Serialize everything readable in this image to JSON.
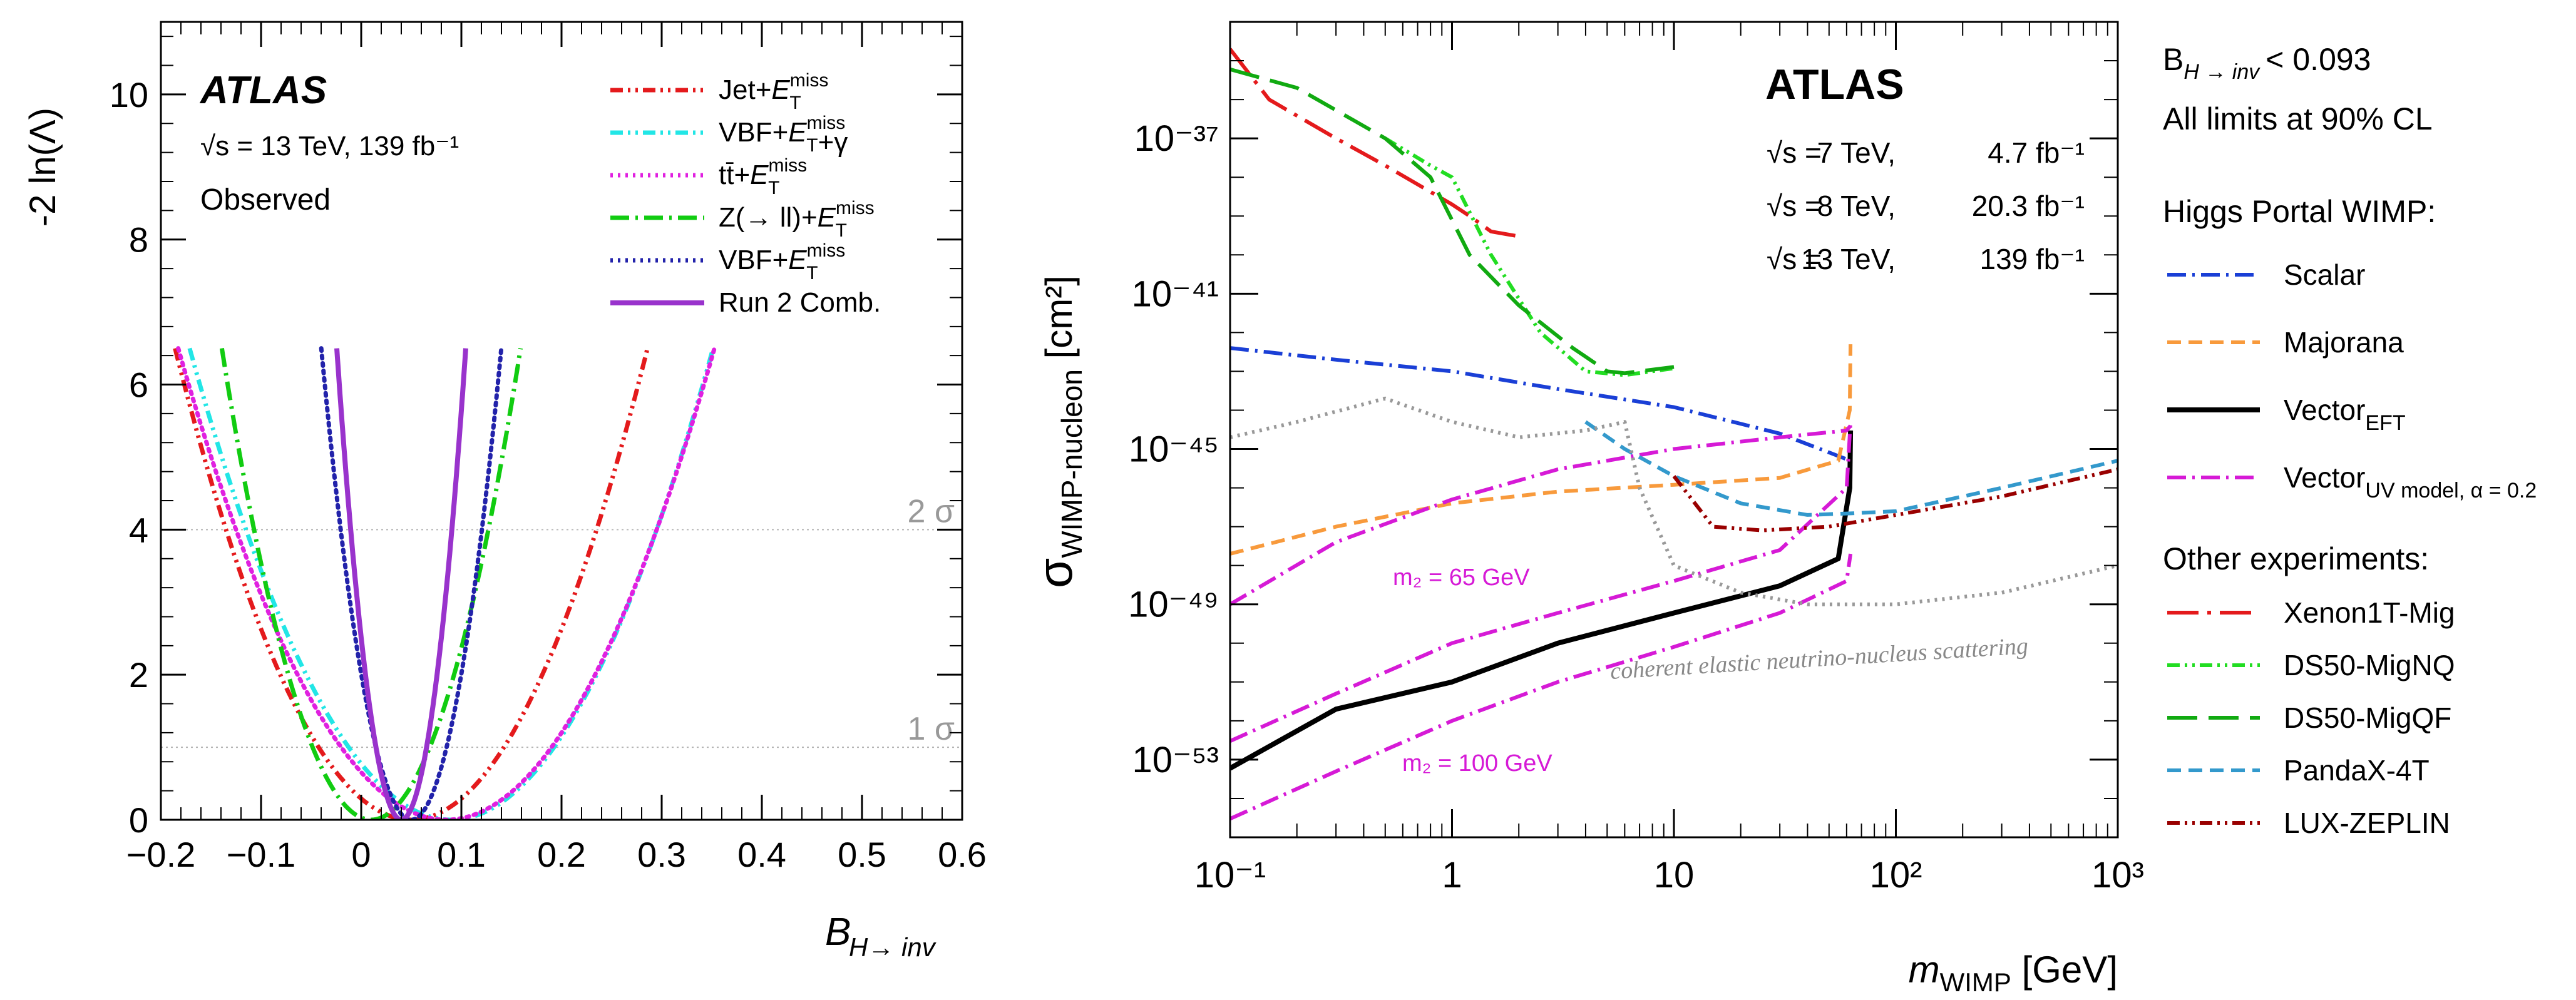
{
  "chart_data": [
    {
      "type": "line",
      "name": "likelihood-scan",
      "title": "",
      "experiment": "ATLAS",
      "energy": "√s = 13 TeV, 139 fb⁻¹",
      "status": "Observed",
      "xlabel": "B_{H→inv}",
      "ylabel": "-2 ln(Λ)",
      "xlim": [
        -0.2,
        0.6
      ],
      "ylim": [
        0,
        11
      ],
      "xticks": [
        -0.2,
        -0.1,
        0,
        0.1,
        0.2,
        0.3,
        0.4,
        0.5,
        0.6
      ],
      "xtick_labels": [
        "−0.2",
        "−0.1",
        "0",
        "0.1",
        "0.2",
        "0.3",
        "0.4",
        "0.5",
        "0.6"
      ],
      "yticks": [
        0,
        2,
        4,
        6,
        8,
        10
      ],
      "ytick_labels": [
        "0",
        "2",
        "4",
        "6",
        "8",
        "10"
      ],
      "legend_position": "top-right",
      "reference_lines": [
        {
          "y": 4,
          "label": "2 σ"
        },
        {
          "y": 1,
          "label": "1 σ"
        }
      ],
      "series": [
        {
          "name": "Jet+E_T^miss",
          "color": "#e41a1c",
          "style": "dash-dot-dot",
          "minimum": 0.05,
          "half_width": 0.185,
          "ymax": 6.5
        },
        {
          "name": "VBF+E_T^miss+γ",
          "color": "#22e6e6",
          "style": "dash-dot-dot",
          "minimum": 0.09,
          "half_width": 0.205,
          "ymax": 6.5
        },
        {
          "name": "tt̄+E_T^miss",
          "color": "#e020e0",
          "style": "dotted",
          "minimum": 0.085,
          "half_width": 0.21,
          "ymax": 6.5
        },
        {
          "name": "Z(→ ll)+E_T^miss",
          "color": "#11cc11",
          "style": "dash-dot",
          "minimum": 0.01,
          "half_width": 0.117,
          "ymax": 6.5
        },
        {
          "name": "VBF+E_T^miss",
          "color": "#2222aa",
          "style": "dotted",
          "minimum": 0.05,
          "half_width": 0.0705,
          "ymax": 6.5
        },
        {
          "name": "Run 2 Comb.",
          "color": "#9933cc",
          "style": "solid",
          "minimum": 0.04,
          "half_width": 0.0505,
          "ymax": 6.5
        }
      ]
    },
    {
      "type": "line",
      "name": "wimp-nucleon-limits",
      "title": "",
      "experiment": "ATLAS",
      "energy_lines": [
        {
          "sqrt_s": "√s =",
          "energy": "7 TeV,",
          "lumi": "4.7 fb⁻¹"
        },
        {
          "sqrt_s": "√s =",
          "energy": "8 TeV,",
          "lumi": "20.3 fb⁻¹"
        },
        {
          "sqrt_s": "√s =",
          "energy": "13 TeV,",
          "lumi": "139 fb⁻¹"
        }
      ],
      "xlabel": "m_WIMP [GeV]",
      "ylabel": "σ_WIMP-nucleon [cm²]",
      "xscale": "log",
      "yscale": "log",
      "xlim": [
        0.1,
        1000
      ],
      "ylim": [
        1e-55,
        1e-34
      ],
      "xticks": [
        0.1,
        1,
        10,
        100,
        1000
      ],
      "xtick_labels": [
        "10⁻¹",
        "1",
        "10",
        "10²",
        "10³"
      ],
      "yticks": [
        1e-53,
        1e-49,
        1e-45,
        1e-41,
        1e-37
      ],
      "ytick_labels": [
        "10⁻⁵³",
        "10⁻⁴⁹",
        "10⁻⁴⁵",
        "10⁻⁴¹",
        "10⁻³⁷"
      ],
      "annotations": [
        {
          "text": "m₂ = 65 GeV",
          "x": 2.0,
          "y": 3e-48
        },
        {
          "text": "m₂ = 100 GeV",
          "x": 2.5,
          "y": 1e-53
        },
        {
          "text": "coherent elastic neutrino-nucleus scattering",
          "x": 40,
          "y": 1e-50
        }
      ],
      "legend": {
        "header_b": "B",
        "header_b_sub": "H → inv",
        "header_b_value": "< 0.093",
        "cl": "All limits at 90% CL",
        "higgs_title": "Higgs Portal WIMP:",
        "other_title": "Other experiments:"
      },
      "series": [
        {
          "name": "Scalar",
          "sub": "",
          "group": "higgs",
          "color": "#1a3fd6",
          "style": "dash-dot",
          "x": [
            0.1,
            0.3,
            1,
            3,
            10,
            30,
            62.5
          ],
          "y": [
            4e-43,
            2e-43,
            1e-43,
            3.5e-44,
            1.2e-44,
            2.5e-45,
            5e-46
          ]
        },
        {
          "name": "Majorana",
          "sub": "",
          "group": "higgs",
          "color": "#f89a3c",
          "style": "dashed",
          "x": [
            0.1,
            0.3,
            1,
            3,
            10,
            30,
            55,
            62,
            62.5
          ],
          "y": [
            2e-48,
            1e-47,
            4e-47,
            8e-47,
            1.2e-46,
            1.8e-46,
            5e-46,
            1e-44,
            5e-43
          ]
        },
        {
          "name": "Vector",
          "sub": "EFT",
          "group": "higgs",
          "color": "#000000",
          "style": "solid",
          "x": [
            0.1,
            0.3,
            1,
            3,
            10,
            30,
            55,
            62,
            62.5
          ],
          "y": [
            6e-54,
            2e-52,
            1e-51,
            1e-50,
            6e-50,
            3e-49,
            1.5e-48,
            1e-46,
            3e-45
          ]
        },
        {
          "name": "Vector",
          "sub": "UV model, α = 0.2",
          "group": "higgs",
          "color": "#d61ad6",
          "style": "dash-dot",
          "x": [
            0.1,
            0.3,
            1,
            3,
            10,
            30,
            60,
            62.5
          ],
          "y": [
            3e-53,
            5e-52,
            1e-50,
            6e-50,
            4e-49,
            2.5e-48,
            1e-46,
            5e-45
          ]
        },
        {
          "name": "Vector",
          "sub": "UV model, α = 0.2",
          "group": "higgs-duplicate",
          "color": "#d61ad6",
          "style": "dash-dot",
          "x": [
            0.1,
            0.3,
            1,
            3,
            10,
            30,
            60,
            62.5
          ],
          "y": [
            3e-55,
            5e-54,
            1e-52,
            1e-51,
            8e-51,
            6e-50,
            4e-49,
            2e-48
          ]
        },
        {
          "name": "Vector",
          "sub": "UV model, α = 0.2",
          "group": "higgs-duplicate",
          "color": "#d61ad6",
          "style": "dash-dot",
          "x": [
            0.1,
            0.3,
            1,
            3,
            10,
            30,
            60,
            62.5
          ],
          "y": [
            1e-49,
            4e-48,
            5e-47,
            3e-46,
            1e-45,
            2e-45,
            3e-45,
            4e-45
          ]
        },
        {
          "name": "Xenon1T-Mig",
          "sub": "",
          "group": "other",
          "color": "#e41a1c",
          "style": "long-dash-dot",
          "x": [
            0.1,
            0.15,
            0.3,
            0.5,
            1,
            1.2,
            1.5,
            2
          ],
          "y": [
            2e-35,
            1e-36,
            1e-37,
            2e-38,
            2e-39,
            1e-39,
            4e-40,
            3e-40
          ]
        },
        {
          "name": "DS50-MigNQ",
          "sub": "",
          "group": "other",
          "color": "#22dd22",
          "style": "dash-dot-dot",
          "x": [
            0.5,
            0.8,
            1.0,
            1.5,
            2.5,
            4,
            6,
            10
          ],
          "y": [
            1e-37,
            2e-38,
            1e-38,
            1e-40,
            1e-42,
            1e-43,
            8e-44,
            1.2e-43
          ]
        },
        {
          "name": "DS50-MigQF",
          "sub": "",
          "group": "other",
          "color": "#11aa11",
          "style": "long-dash",
          "x": [
            0.1,
            0.2,
            0.5,
            0.8,
            1.2,
            2,
            3.5,
            5,
            6,
            10
          ],
          "y": [
            6e-36,
            2e-36,
            1e-37,
            1e-38,
            1e-40,
            5e-42,
            4e-43,
            1e-43,
            9e-44,
            1.3e-43
          ]
        },
        {
          "name": "PandaX-4T",
          "sub": "",
          "group": "other",
          "color": "#3399cc",
          "style": "dashed",
          "x": [
            4,
            6,
            10,
            20,
            40,
            62.5,
            100,
            300,
            1000
          ],
          "y": [
            5e-45,
            1e-45,
            2e-46,
            4e-47,
            2e-47,
            2.2e-47,
            2.5e-47,
            1e-46,
            5e-46
          ]
        },
        {
          "name": "LUX-ZEPLIN",
          "sub": "",
          "group": "other",
          "color": "#990000",
          "style": "dash-dot-dot",
          "x": [
            10,
            15,
            25,
            50,
            100,
            300,
            1000
          ],
          "y": [
            2e-46,
            1e-47,
            8e-48,
            1e-47,
            2e-47,
            6e-47,
            3e-46
          ]
        },
        {
          "name": "coherent elastic neutrino-nucleus scattering",
          "sub": "",
          "group": "floor",
          "color": "#999999",
          "style": "dotted",
          "x": [
            0.1,
            0.2,
            0.5,
            1,
            2,
            4,
            6,
            7,
            10,
            20,
            40,
            100,
            300,
            1000
          ],
          "y": [
            2e-45,
            5e-45,
            2e-44,
            5e-45,
            2e-45,
            3e-45,
            5e-45,
            1e-46,
            1e-48,
            2e-49,
            1e-49,
            1e-49,
            2e-49,
            1e-48
          ]
        }
      ]
    }
  ]
}
